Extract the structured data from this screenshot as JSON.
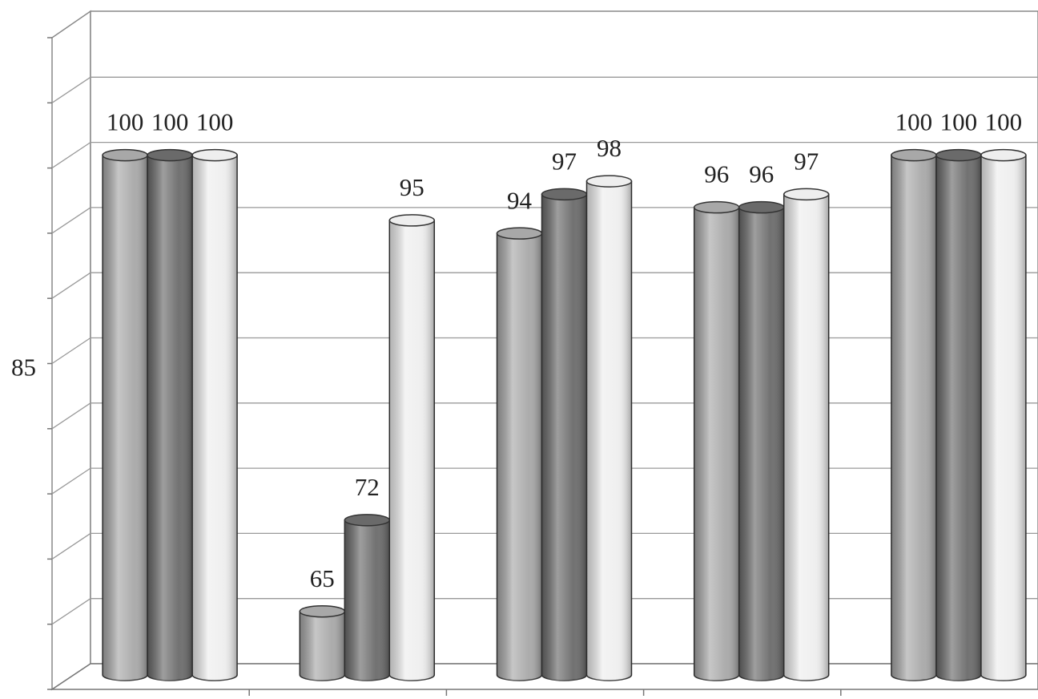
{
  "chart_data": {
    "type": "bar3d",
    "categories": [
      null,
      null,
      null,
      null,
      null
    ],
    "series": [
      {
        "color": "#a8a8a8",
        "values": [
          100,
          65,
          94,
          96,
          100
        ]
      },
      {
        "color": "#6a6a6a",
        "values": [
          100,
          72,
          97,
          96,
          100
        ]
      },
      {
        "color": "#eeeeee",
        "values": [
          100,
          95,
          98,
          97,
          100
        ]
      }
    ],
    "ylim": [
      60,
      110
    ],
    "yticks": [
      {
        "value": 60,
        "label": null
      },
      {
        "value": 65,
        "label": null
      },
      {
        "value": 70,
        "label": null
      },
      {
        "value": 75,
        "label": null
      },
      {
        "value": 80,
        "label": null
      },
      85,
      {
        "value": 90,
        "label": null
      },
      {
        "value": 95,
        "label": null
      },
      {
        "value": 100,
        "label": null
      },
      {
        "value": 105,
        "label": null
      },
      {
        "value": 110,
        "label": null
      }
    ],
    "grid": true
  }
}
